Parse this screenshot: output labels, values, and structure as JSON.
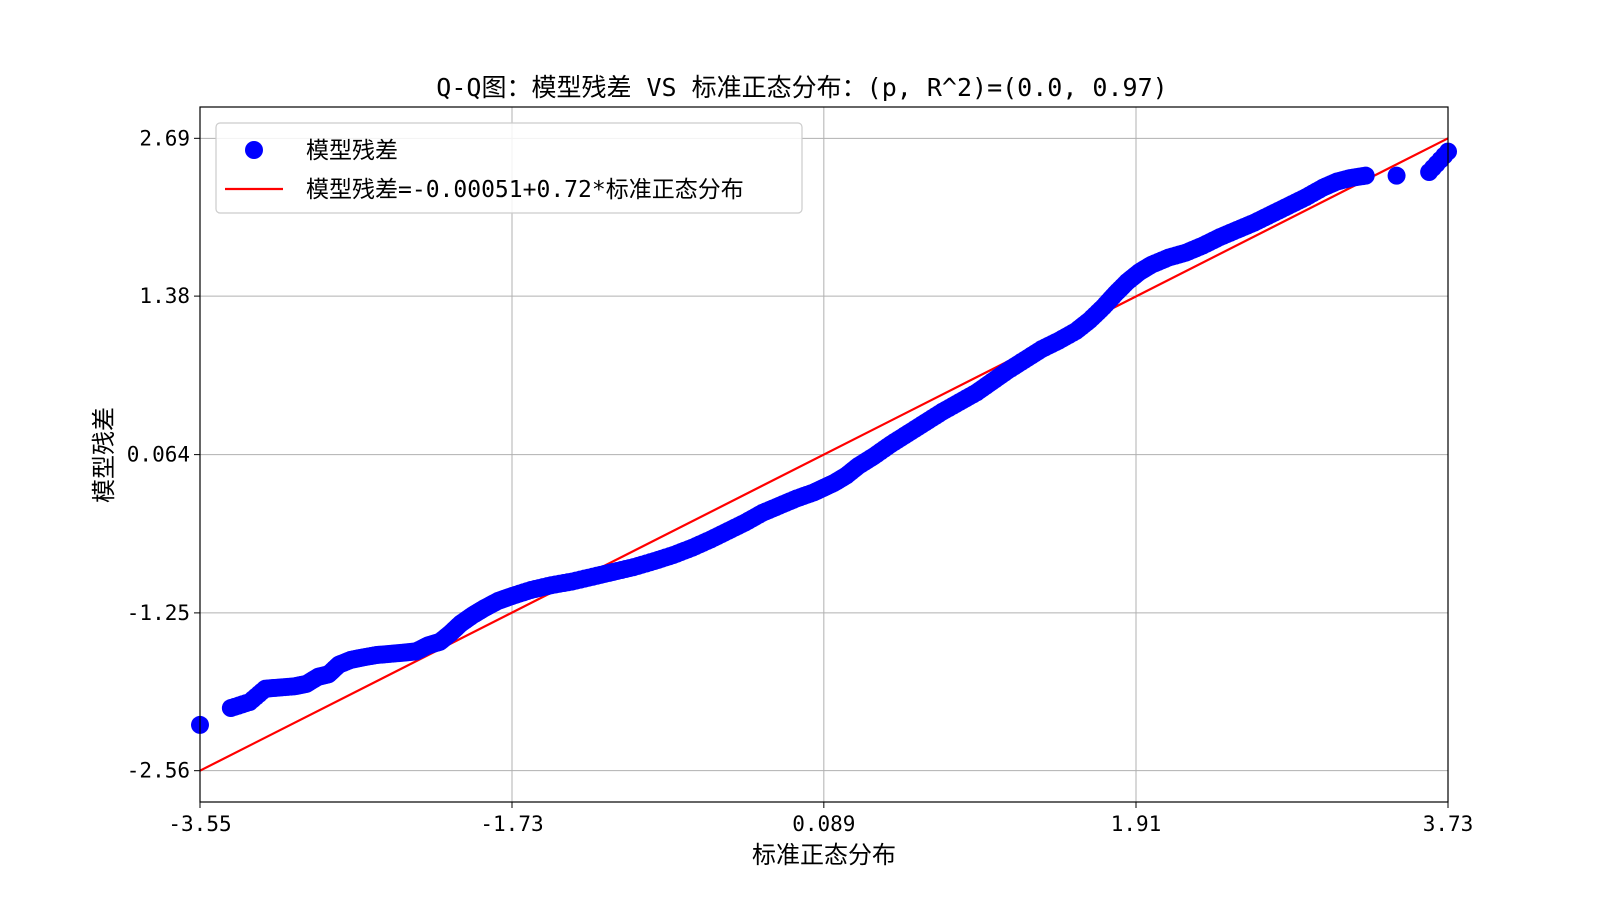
{
  "chart_data": {
    "type": "scatter",
    "title": "Q-Q图：模型残差 VS 标准正态分布：(p, R^2)=(0.0, 0.97)",
    "xlabel": "标准正态分布",
    "ylabel": "模型残差",
    "x_ticks": [
      "-3.55",
      "-1.73",
      "0.089",
      "1.91",
      "3.73"
    ],
    "y_ticks": [
      "2.69",
      "1.38",
      "0.064",
      "-1.25",
      "-2.56"
    ],
    "x_tick_values": [
      -3.55,
      -1.73,
      0.089,
      1.91,
      3.73
    ],
    "y_tick_values": [
      2.69,
      1.38,
      0.064,
      -1.25,
      -2.56
    ],
    "xlim": [
      -3.55,
      3.73
    ],
    "ylim": [
      -2.82,
      2.95
    ],
    "grid": true,
    "legend_position": "top-left",
    "series": [
      {
        "name": "模型残差",
        "kind": "scatter",
        "color": "#0000ff",
        "points": [
          [
            -3.55,
            -2.18
          ],
          [
            -3.37,
            -2.04
          ],
          [
            -3.26,
            -1.99
          ],
          [
            -3.17,
            -1.88
          ],
          [
            -3.09,
            -1.87
          ],
          [
            -3.0,
            -1.86
          ],
          [
            -2.93,
            -1.84
          ],
          [
            -2.86,
            -1.78
          ],
          [
            -2.8,
            -1.76
          ],
          [
            -2.74,
            -1.68
          ],
          [
            -2.67,
            -1.64
          ],
          [
            -2.6,
            -1.62
          ],
          [
            -2.52,
            -1.6
          ],
          [
            -2.44,
            -1.59
          ],
          [
            -2.36,
            -1.58
          ],
          [
            -2.29,
            -1.57
          ],
          [
            -2.22,
            -1.52
          ],
          [
            -2.15,
            -1.49
          ],
          [
            -2.09,
            -1.42
          ],
          [
            -2.03,
            -1.34
          ],
          [
            -1.96,
            -1.27
          ],
          [
            -1.89,
            -1.21
          ],
          [
            -1.81,
            -1.15
          ],
          [
            -1.73,
            -1.11
          ],
          [
            -1.62,
            -1.06
          ],
          [
            -1.5,
            -1.02
          ],
          [
            -1.38,
            -0.99
          ],
          [
            -1.26,
            -0.95
          ],
          [
            -1.14,
            -0.91
          ],
          [
            -1.02,
            -0.87
          ],
          [
            -0.9,
            -0.82
          ],
          [
            -0.79,
            -0.77
          ],
          [
            -0.68,
            -0.71
          ],
          [
            -0.57,
            -0.64
          ],
          [
            -0.47,
            -0.57
          ],
          [
            -0.37,
            -0.5
          ],
          [
            -0.27,
            -0.42
          ],
          [
            -0.17,
            -0.36
          ],
          [
            -0.07,
            -0.3
          ],
          [
            0.03,
            -0.25
          ],
          [
            0.09,
            -0.21
          ],
          [
            0.15,
            -0.17
          ],
          [
            0.22,
            -0.11
          ],
          [
            0.29,
            -0.03
          ],
          [
            0.38,
            0.05
          ],
          [
            0.48,
            0.15
          ],
          [
            0.58,
            0.24
          ],
          [
            0.68,
            0.33
          ],
          [
            0.78,
            0.42
          ],
          [
            0.88,
            0.5
          ],
          [
            0.98,
            0.58
          ],
          [
            1.07,
            0.67
          ],
          [
            1.16,
            0.76
          ],
          [
            1.26,
            0.85
          ],
          [
            1.36,
            0.94
          ],
          [
            1.46,
            1.01
          ],
          [
            1.56,
            1.09
          ],
          [
            1.64,
            1.18
          ],
          [
            1.72,
            1.29
          ],
          [
            1.79,
            1.4
          ],
          [
            1.86,
            1.5
          ],
          [
            1.93,
            1.58
          ],
          [
            2.0,
            1.64
          ],
          [
            2.1,
            1.7
          ],
          [
            2.2,
            1.74
          ],
          [
            2.3,
            1.8
          ],
          [
            2.4,
            1.87
          ],
          [
            2.5,
            1.93
          ],
          [
            2.6,
            1.99
          ],
          [
            2.7,
            2.06
          ],
          [
            2.8,
            2.13
          ],
          [
            2.9,
            2.2
          ],
          [
            3.0,
            2.28
          ],
          [
            3.08,
            2.33
          ],
          [
            3.16,
            2.36
          ],
          [
            3.25,
            2.38
          ],
          [
            3.43,
            2.38
          ],
          [
            3.62,
            2.41
          ],
          [
            3.73,
            2.58
          ]
        ]
      },
      {
        "name": "模型残差=-0.00051+0.72*标准正态分布",
        "kind": "line",
        "color": "#ff0000",
        "x": [
          -3.55,
          3.73
        ],
        "y": [
          -2.56,
          2.69
        ]
      }
    ]
  }
}
